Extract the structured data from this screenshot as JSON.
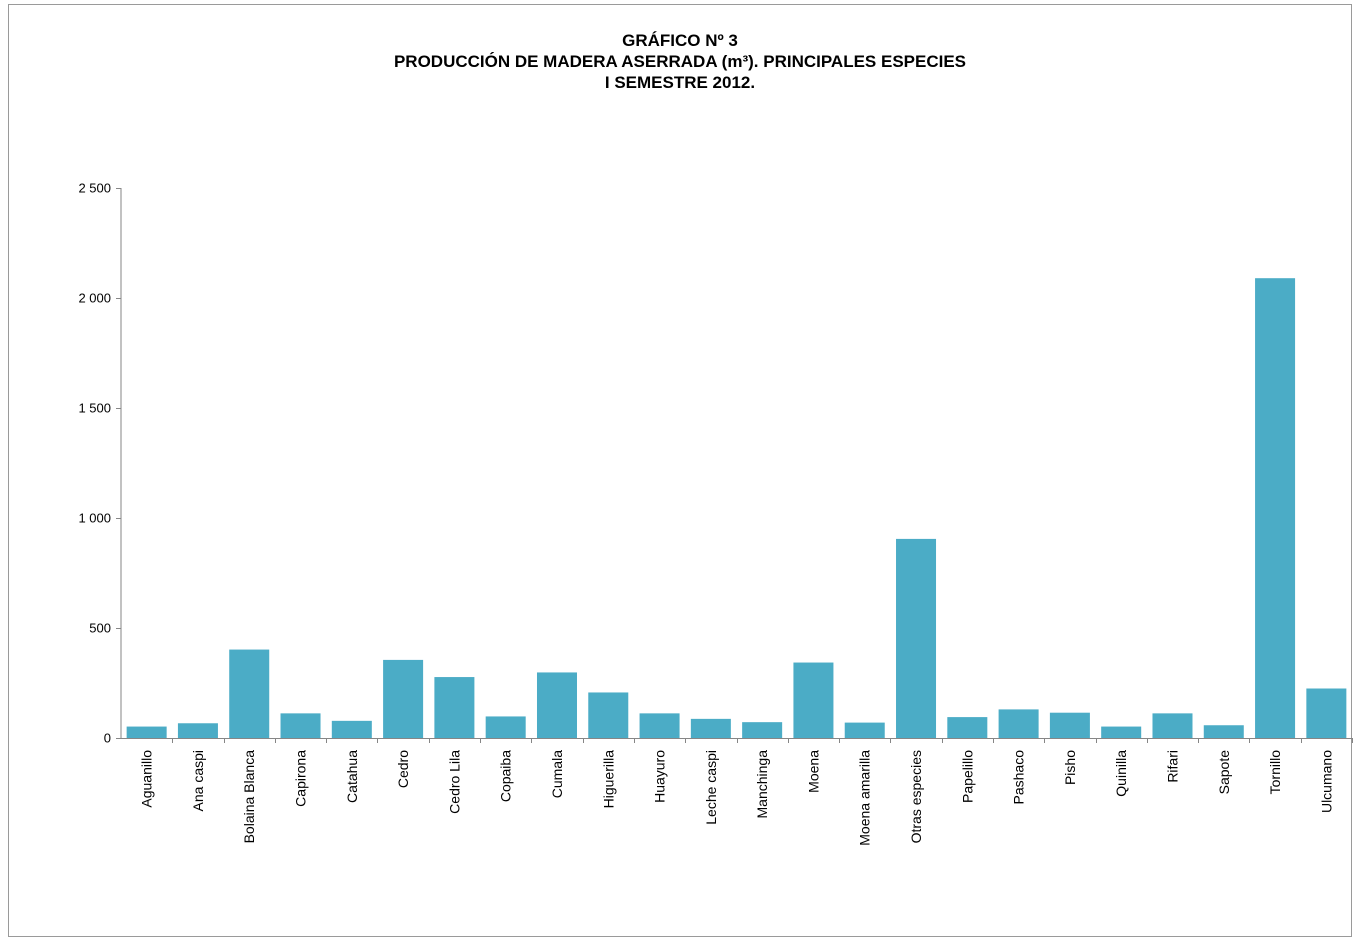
{
  "chart_data": {
    "type": "bar",
    "title_lines": [
      "GRÁFICO Nº  3",
      "PRODUCCIÓN DE MADERA ASERRADA (m³). PRINCIPALES ESPECIES",
      "I SEMESTRE 2012."
    ],
    "xlabel": "",
    "ylabel": "",
    "ylim": [
      0,
      2500
    ],
    "yticks": [
      0,
      500,
      1000,
      1500,
      2000,
      2500
    ],
    "ytick_labels": [
      "0",
      "500",
      "1 000",
      "1 500",
      "2 000",
      "2 500"
    ],
    "bar_color": "#4bacc6",
    "categories": [
      "Aguanillo",
      "Ana caspi",
      "Bolaina Blanca",
      "Capirona",
      "Catahua",
      "Cedro",
      "Cedro Lila",
      "Copaiba",
      "Cumala",
      "Higuerilla",
      "Huayuro",
      "Leche caspi",
      "Manchinga",
      "Moena",
      "Moena amarilla",
      "Otras especies",
      "Papelillo",
      "Pashaco",
      "Pisho",
      "Quinilla",
      "Rifari",
      "Sapote",
      "Tornillo",
      "Ulcumano"
    ],
    "values": [
      52,
      67,
      402,
      112,
      78,
      355,
      277,
      98,
      298,
      207,
      112,
      87,
      72,
      343,
      70,
      905,
      95,
      130,
      115,
      52,
      112,
      58,
      2090,
      225
    ],
    "grid": false,
    "legend": "none"
  }
}
